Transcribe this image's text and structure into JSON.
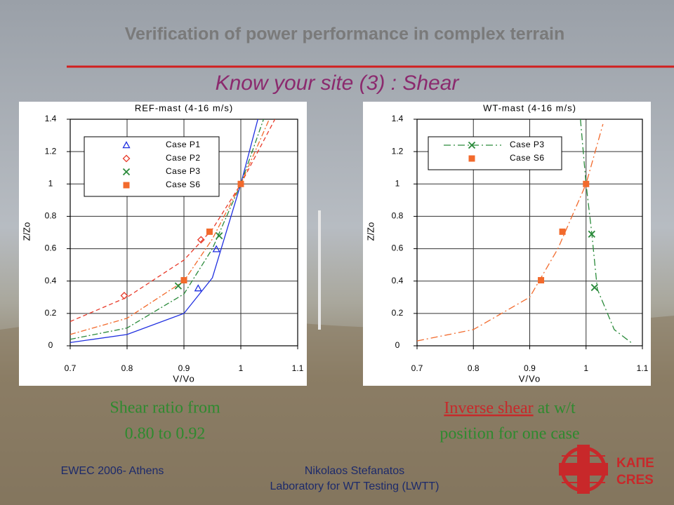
{
  "header": {
    "title": "Verification of power performance in complex terrain",
    "subtitle": "Know your site (3) : Shear"
  },
  "chart_data": [
    {
      "type": "scatter",
      "title": "REF-mast (4-16 m/s)",
      "x_label": "V/Vo",
      "y_label": "Z/Zo",
      "xlim": [
        0.7,
        1.1
      ],
      "xticks": [
        0.7,
        0.8,
        0.9,
        1,
        1.1
      ],
      "ylim": [
        0,
        1.4
      ],
      "yticks": [
        0,
        0.2,
        0.4,
        0.6,
        0.8,
        1,
        1.2,
        1.4
      ],
      "grid": true,
      "legend": "upper left",
      "legend_lines": false,
      "series": [
        {
          "name": "Case P1",
          "color": "#1f2fe0",
          "marker": "triangle",
          "dash": "none",
          "x": [
            0.925,
            0.957
          ],
          "values": [
            0.355,
            0.597
          ],
          "curve_x": [
            0.7,
            0.8,
            0.9,
            0.95,
            1,
            1.03
          ],
          "curve_y": [
            0.02,
            0.07,
            0.2,
            0.42,
            1,
            1.4
          ]
        },
        {
          "name": "Case P2",
          "color": "#e83a2a",
          "marker": "diamond",
          "dash": "6,4",
          "x": [
            0.795,
            0.93
          ],
          "values": [
            0.31,
            0.655
          ],
          "curve_x": [
            0.7,
            0.8,
            0.9,
            0.95,
            1,
            1.06
          ],
          "curve_y": [
            0.15,
            0.3,
            0.53,
            0.72,
            1,
            1.4
          ]
        },
        {
          "name": "Case P3",
          "color": "#2a8a3a",
          "marker": "x",
          "dash": "8,3,2,3",
          "x": [
            0.89,
            0.962
          ],
          "values": [
            0.37,
            0.68
          ],
          "curve_x": [
            0.7,
            0.8,
            0.9,
            0.95,
            1,
            1.04
          ],
          "curve_y": [
            0.04,
            0.11,
            0.32,
            0.6,
            1,
            1.4
          ]
        },
        {
          "name": "Case S6",
          "color": "#f26a2c",
          "marker": "square",
          "dash": "8,3,2,3",
          "x": [
            0.9,
            0.945,
            1
          ],
          "values": [
            0.405,
            0.705,
            1
          ],
          "curve_x": [
            0.7,
            0.8,
            0.9,
            0.95,
            1,
            1.05
          ],
          "curve_y": [
            0.07,
            0.17,
            0.4,
            0.66,
            1,
            1.4
          ]
        }
      ]
    },
    {
      "type": "scatter",
      "title": "WT-mast (4-16 m/s)",
      "x_label": "V/Vo",
      "y_label": "Z/Zo",
      "xlim": [
        0.7,
        1.1
      ],
      "xticks": [
        0.7,
        0.8,
        0.9,
        1,
        1.1
      ],
      "ylim": [
        0,
        1.4
      ],
      "yticks": [
        0,
        0.2,
        0.4,
        0.6,
        0.8,
        1,
        1.2,
        1.4
      ],
      "grid": true,
      "legend": "upper left",
      "legend_lines": true,
      "series": [
        {
          "name": "Case P3",
          "color": "#2a8a3a",
          "marker": "x",
          "dash": "10,4,2,4",
          "x": [
            1.01,
            1.015
          ],
          "values": [
            0.69,
            0.36
          ],
          "curve_x": [
            0.99,
            1,
            1.01,
            1.02,
            1.05,
            1.08
          ],
          "curve_y": [
            1.4,
            1,
            0.7,
            0.35,
            0.1,
            0.02
          ]
        },
        {
          "name": "Case S6",
          "color": "#f26a2c",
          "marker": "square",
          "dash": "10,4,2,4",
          "x": [
            0.92,
            0.958,
            1
          ],
          "values": [
            0.405,
            0.705,
            1
          ],
          "curve_x": [
            0.7,
            0.8,
            0.9,
            0.95,
            1,
            1.03
          ],
          "curve_y": [
            0.03,
            0.1,
            0.3,
            0.6,
            1,
            1.37
          ]
        }
      ]
    }
  ],
  "captions": {
    "left": [
      "Shear ratio from",
      "0.80 to 0.92"
    ],
    "right": {
      "highlight": "Inverse shear",
      "line1_rest": " at w/t",
      "line2": "position for one case"
    }
  },
  "footer": {
    "event": "EWEC 2006- Athens",
    "author": "Nikolaos Stefanatos",
    "lab": "Laboratory for WT Testing (LWTT)"
  },
  "logo": {
    "line1": "ΚΑΠΕ",
    "line2": "CRES"
  }
}
